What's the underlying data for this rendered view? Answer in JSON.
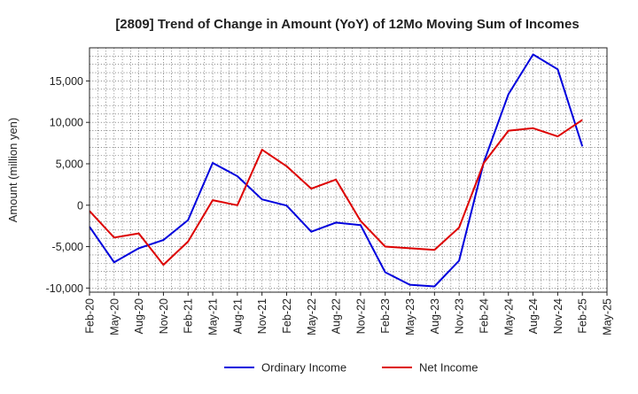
{
  "chart_data": {
    "type": "line",
    "title": "[2809]  Trend of Change in Amount (YoY) of 12Mo Moving Sum of Incomes",
    "xlabel": "",
    "ylabel": "Amount (million yen)",
    "ylim": [
      -10500,
      19000
    ],
    "yticks": [
      -10000,
      -5000,
      0,
      5000,
      10000,
      15000
    ],
    "ytick_labels": [
      "-10,000",
      "-5,000",
      "0",
      "5,000",
      "10,000",
      "15,000"
    ],
    "categories": [
      "Feb-20",
      "May-20",
      "Aug-20",
      "Nov-20",
      "Feb-21",
      "May-21",
      "Aug-21",
      "Nov-21",
      "Feb-22",
      "May-22",
      "Aug-22",
      "Nov-22",
      "Feb-23",
      "May-23",
      "Aug-23",
      "Nov-23",
      "Feb-24",
      "May-24",
      "Aug-24",
      "Nov-24",
      "Feb-25",
      "May-25"
    ],
    "grid": true,
    "legend": "bottom-center",
    "series": [
      {
        "name": "Ordinary Income",
        "color": "#0000dd",
        "values": [
          -2600,
          -6900,
          -5200,
          -4200,
          -1800,
          5100,
          3500,
          700,
          -50,
          -3200,
          -2100,
          -2400,
          -8100,
          -9600,
          -9800,
          -6700,
          5200,
          13400,
          18200,
          16400,
          7100,
          null
        ]
      },
      {
        "name": "Net Income",
        "color": "#dd0000",
        "values": [
          -700,
          -3900,
          -3400,
          -7200,
          -4400,
          600,
          0,
          6700,
          4700,
          2000,
          3100,
          -1900,
          -5000,
          -5200,
          -5400,
          -2700,
          5100,
          9000,
          9300,
          8300,
          10300,
          null
        ]
      }
    ]
  }
}
